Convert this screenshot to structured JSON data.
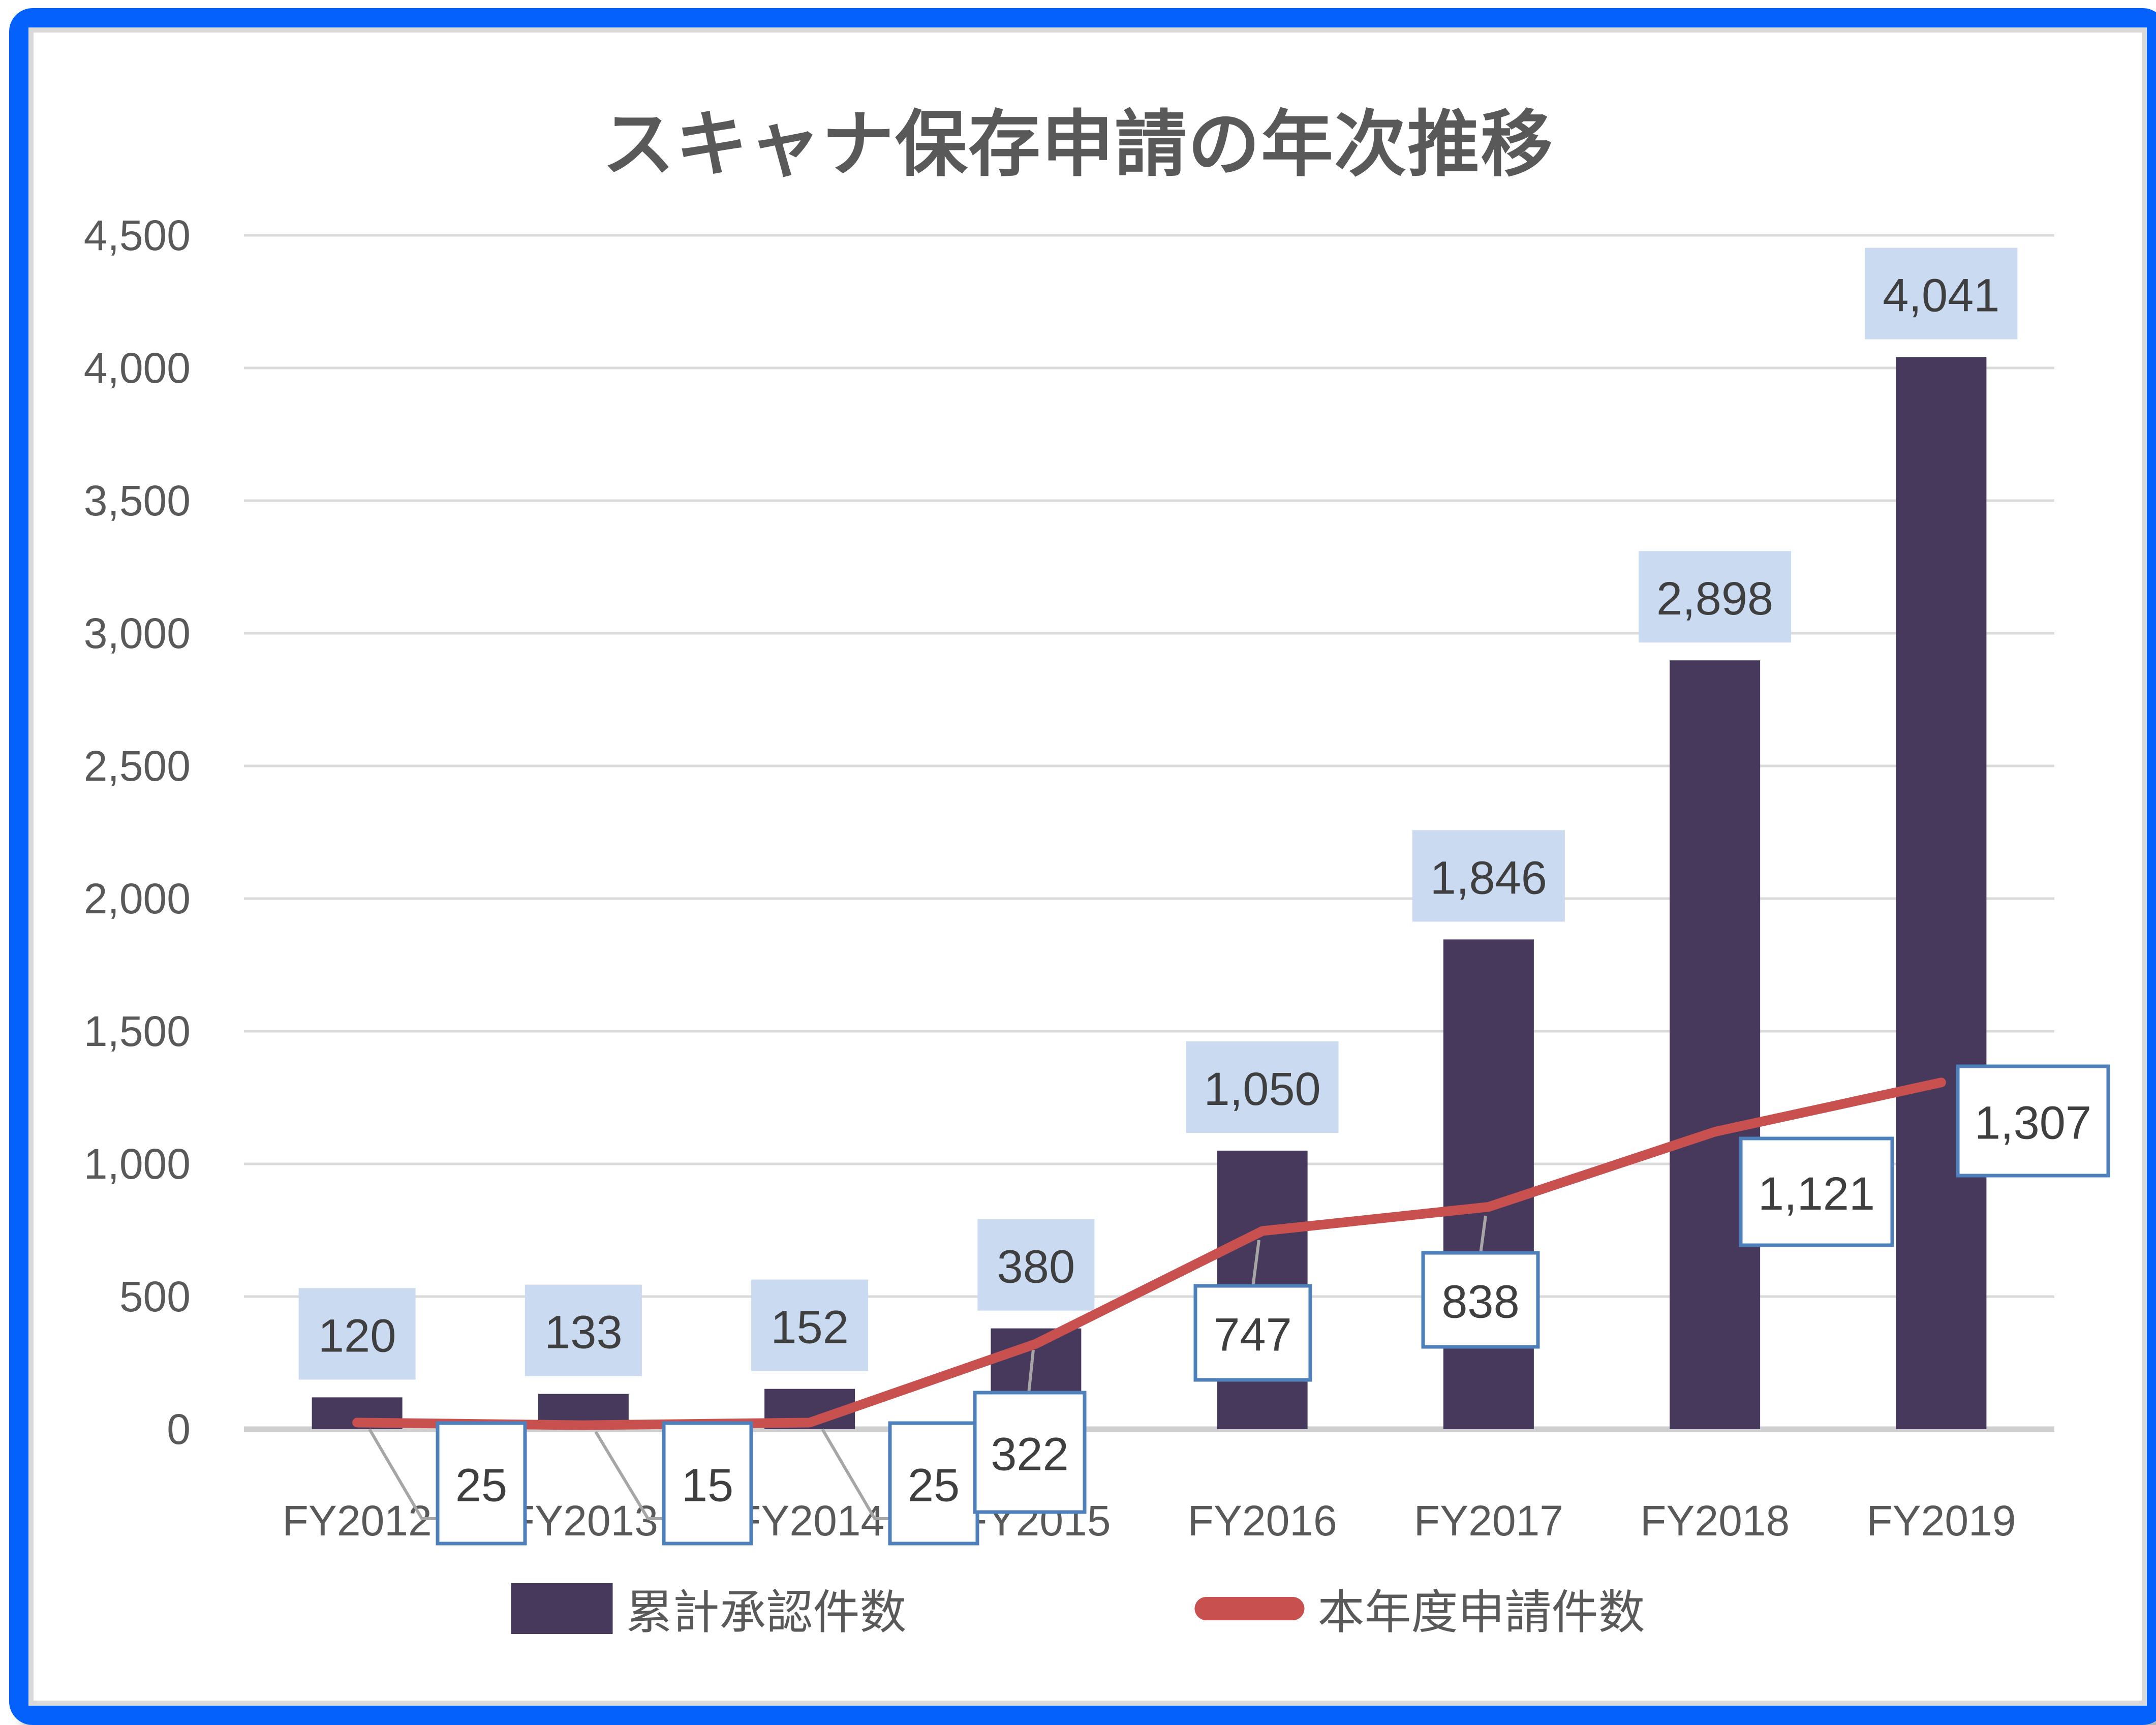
{
  "title": "スキャナ保存申請の年次推移",
  "chart_data": {
    "type": "bar",
    "subtype": "combo-bar-line",
    "title": "スキャナ保存申請の年次推移",
    "categories": [
      "FY2012",
      "FY2013",
      "FY2014",
      "FY2015",
      "FY2016",
      "FY2017",
      "FY2018",
      "FY2019"
    ],
    "series": [
      {
        "name": "累計承認件数",
        "chart_type": "bar",
        "values": [
          120,
          133,
          152,
          380,
          1050,
          1846,
          2898,
          4041
        ],
        "labels": [
          "120",
          "133",
          "152",
          "380",
          "1,050",
          "1,846",
          "2,898",
          "4,041"
        ]
      },
      {
        "name": "本年度申請件数",
        "chart_type": "line",
        "values": [
          25,
          15,
          25,
          322,
          747,
          838,
          1121,
          1307
        ],
        "labels": [
          "25",
          "15",
          "25",
          "322",
          "747",
          "838",
          "1,121",
          "1,307"
        ]
      }
    ],
    "ylim": [
      0,
      4500
    ],
    "ytick_step": 500,
    "yticks": [
      "0",
      "500",
      "1,000",
      "1,500",
      "2,000",
      "2,500",
      "3,000",
      "3,500",
      "4,000",
      "4,500"
    ],
    "grid": true,
    "legend_position": "bottom",
    "colors": {
      "bar": "#47395C",
      "line": "#C8504E",
      "bar_label_fill": "#C9DAF1",
      "line_label_fill": "#FFFFFF",
      "line_label_border": "#4E81BC",
      "label_text": "#3F3F3F",
      "axis_text": "#595959",
      "title_text": "#595959",
      "gridline": "#DADADA",
      "axis_line": "#CFCFCF",
      "leader_line": "#A6A6A6",
      "frame_blue": "#0561FC",
      "chart_border": "#D9D9D9",
      "background": "#FFFFFF"
    }
  }
}
